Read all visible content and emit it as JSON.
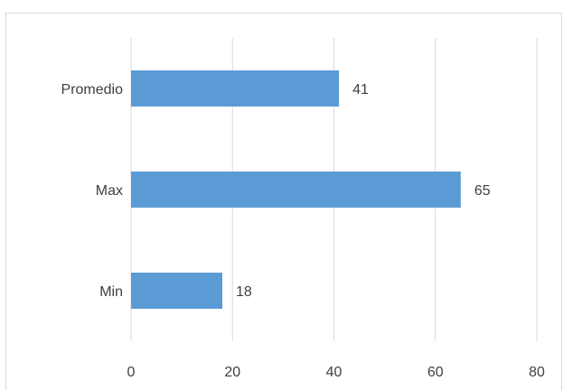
{
  "chart_data": {
    "type": "bar",
    "orientation": "horizontal",
    "categories": [
      "Promedio",
      "Max",
      "Min"
    ],
    "values": [
      41,
      65,
      18
    ],
    "data_labels": [
      "41",
      "65",
      "18"
    ],
    "xlim": [
      0,
      80
    ],
    "x_ticks": [
      0,
      20,
      40,
      60,
      80
    ],
    "x_tick_labels": [
      "0",
      "20",
      "40",
      "60",
      "80"
    ],
    "grid": "vertical",
    "legend": "none",
    "bar_color": "#5b9bd5",
    "grid_color": "#d9d9d9",
    "text_color": "#404040"
  }
}
